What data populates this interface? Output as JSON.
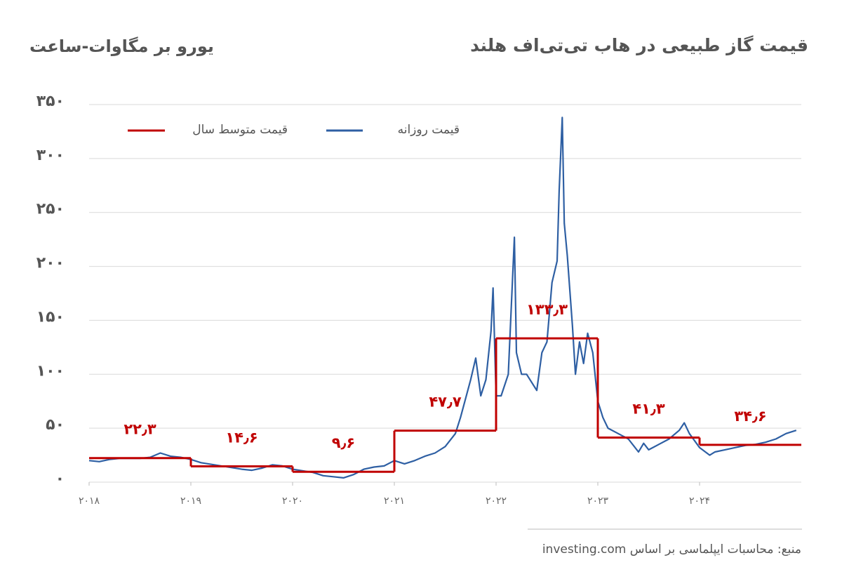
{
  "chart_data": {
    "type": "line",
    "title": "قیمت گاز طبیعی در هاب تی‌تی‌اف هلند",
    "y_label": "یورو بر مگاوات-ساعت",
    "source": "منبع: محاسبات ایپلماسی بر اساس investing.com",
    "xlim": [
      2018,
      2025
    ],
    "xticks": [
      {
        "value": 2018,
        "label": "۲۰۱۸"
      },
      {
        "value": 2019,
        "label": "۲۰۱۹"
      },
      {
        "value": 2020,
        "label": "۲۰۲۰"
      },
      {
        "value": 2021,
        "label": "۲۰۲۱"
      },
      {
        "value": 2022,
        "label": "۲۰۲۲"
      },
      {
        "value": 2023,
        "label": "۲۰۲۳"
      },
      {
        "value": 2024,
        "label": "۲۰۲۴"
      }
    ],
    "ylim": [
      0,
      350
    ],
    "yticks": [
      {
        "value": 0,
        "label": "۰"
      },
      {
        "value": 50,
        "label": "۵۰"
      },
      {
        "value": 100,
        "label": "۱۰۰"
      },
      {
        "value": 150,
        "label": "۱۵۰"
      },
      {
        "value": 200,
        "label": "۲۰۰"
      },
      {
        "value": 250,
        "label": "۲۵۰"
      },
      {
        "value": 300,
        "label": "۳۰۰"
      },
      {
        "value": 350,
        "label": "۳۵۰"
      }
    ],
    "grid": true,
    "series": [
      {
        "name": "قیمت متوسط سال",
        "color": "#c00000",
        "step": true,
        "x": [
          2018,
          2019,
          2020,
          2021,
          2022,
          2023,
          2024
        ],
        "values": [
          22.3,
          14.6,
          9.6,
          47.7,
          133.3,
          41.3,
          34.6
        ],
        "value_labels": [
          "۲۲٫۳",
          "۱۴٫۶",
          "۹٫۶",
          "۴۷٫۷",
          "۱۳۳٫۳",
          "۴۱٫۳",
          "۳۴٫۶"
        ]
      },
      {
        "name": "قیمت روزانه",
        "color": "#2e5fa3",
        "x": [
          2018.0,
          2018.1,
          2018.2,
          2018.3,
          2018.5,
          2018.6,
          2018.7,
          2018.8,
          2018.9,
          2019.0,
          2019.1,
          2019.3,
          2019.5,
          2019.6,
          2019.7,
          2019.8,
          2019.9,
          2020.0,
          2020.2,
          2020.3,
          2020.4,
          2020.5,
          2020.6,
          2020.7,
          2020.8,
          2020.9,
          2021.0,
          2021.1,
          2021.2,
          2021.3,
          2021.4,
          2021.5,
          2021.6,
          2021.65,
          2021.75,
          2021.8,
          2021.85,
          2021.9,
          2021.95,
          2021.97,
          2022.0,
          2022.05,
          2022.12,
          2022.18,
          2022.2,
          2022.25,
          2022.3,
          2022.4,
          2022.45,
          2022.5,
          2022.55,
          2022.6,
          2022.62,
          2022.65,
          2022.67,
          2022.7,
          2022.75,
          2022.78,
          2022.82,
          2022.86,
          2022.9,
          2022.95,
          2023.0,
          2023.05,
          2023.1,
          2023.2,
          2023.3,
          2023.4,
          2023.45,
          2023.5,
          2023.6,
          2023.7,
          2023.8,
          2023.85,
          2023.9,
          2024.0,
          2024.1,
          2024.15,
          2024.25,
          2024.35,
          2024.45,
          2024.55,
          2024.65,
          2024.75,
          2024.85,
          2024.95
        ],
        "values": [
          20,
          19,
          21,
          22,
          22,
          23,
          27,
          24,
          23,
          21,
          18,
          15,
          12,
          11,
          13,
          16,
          15,
          12,
          9,
          6,
          5,
          4,
          7,
          12,
          14,
          15,
          20,
          17,
          20,
          24,
          27,
          33,
          45,
          60,
          95,
          115,
          80,
          95,
          140,
          180,
          80,
          80,
          100,
          227,
          120,
          100,
          100,
          85,
          120,
          130,
          185,
          205,
          270,
          338,
          240,
          210,
          145,
          100,
          130,
          110,
          138,
          120,
          75,
          60,
          50,
          45,
          40,
          28,
          36,
          30,
          35,
          40,
          48,
          55,
          45,
          32,
          25,
          28,
          30,
          32,
          34,
          35,
          37,
          40,
          45,
          48
        ]
      }
    ]
  }
}
